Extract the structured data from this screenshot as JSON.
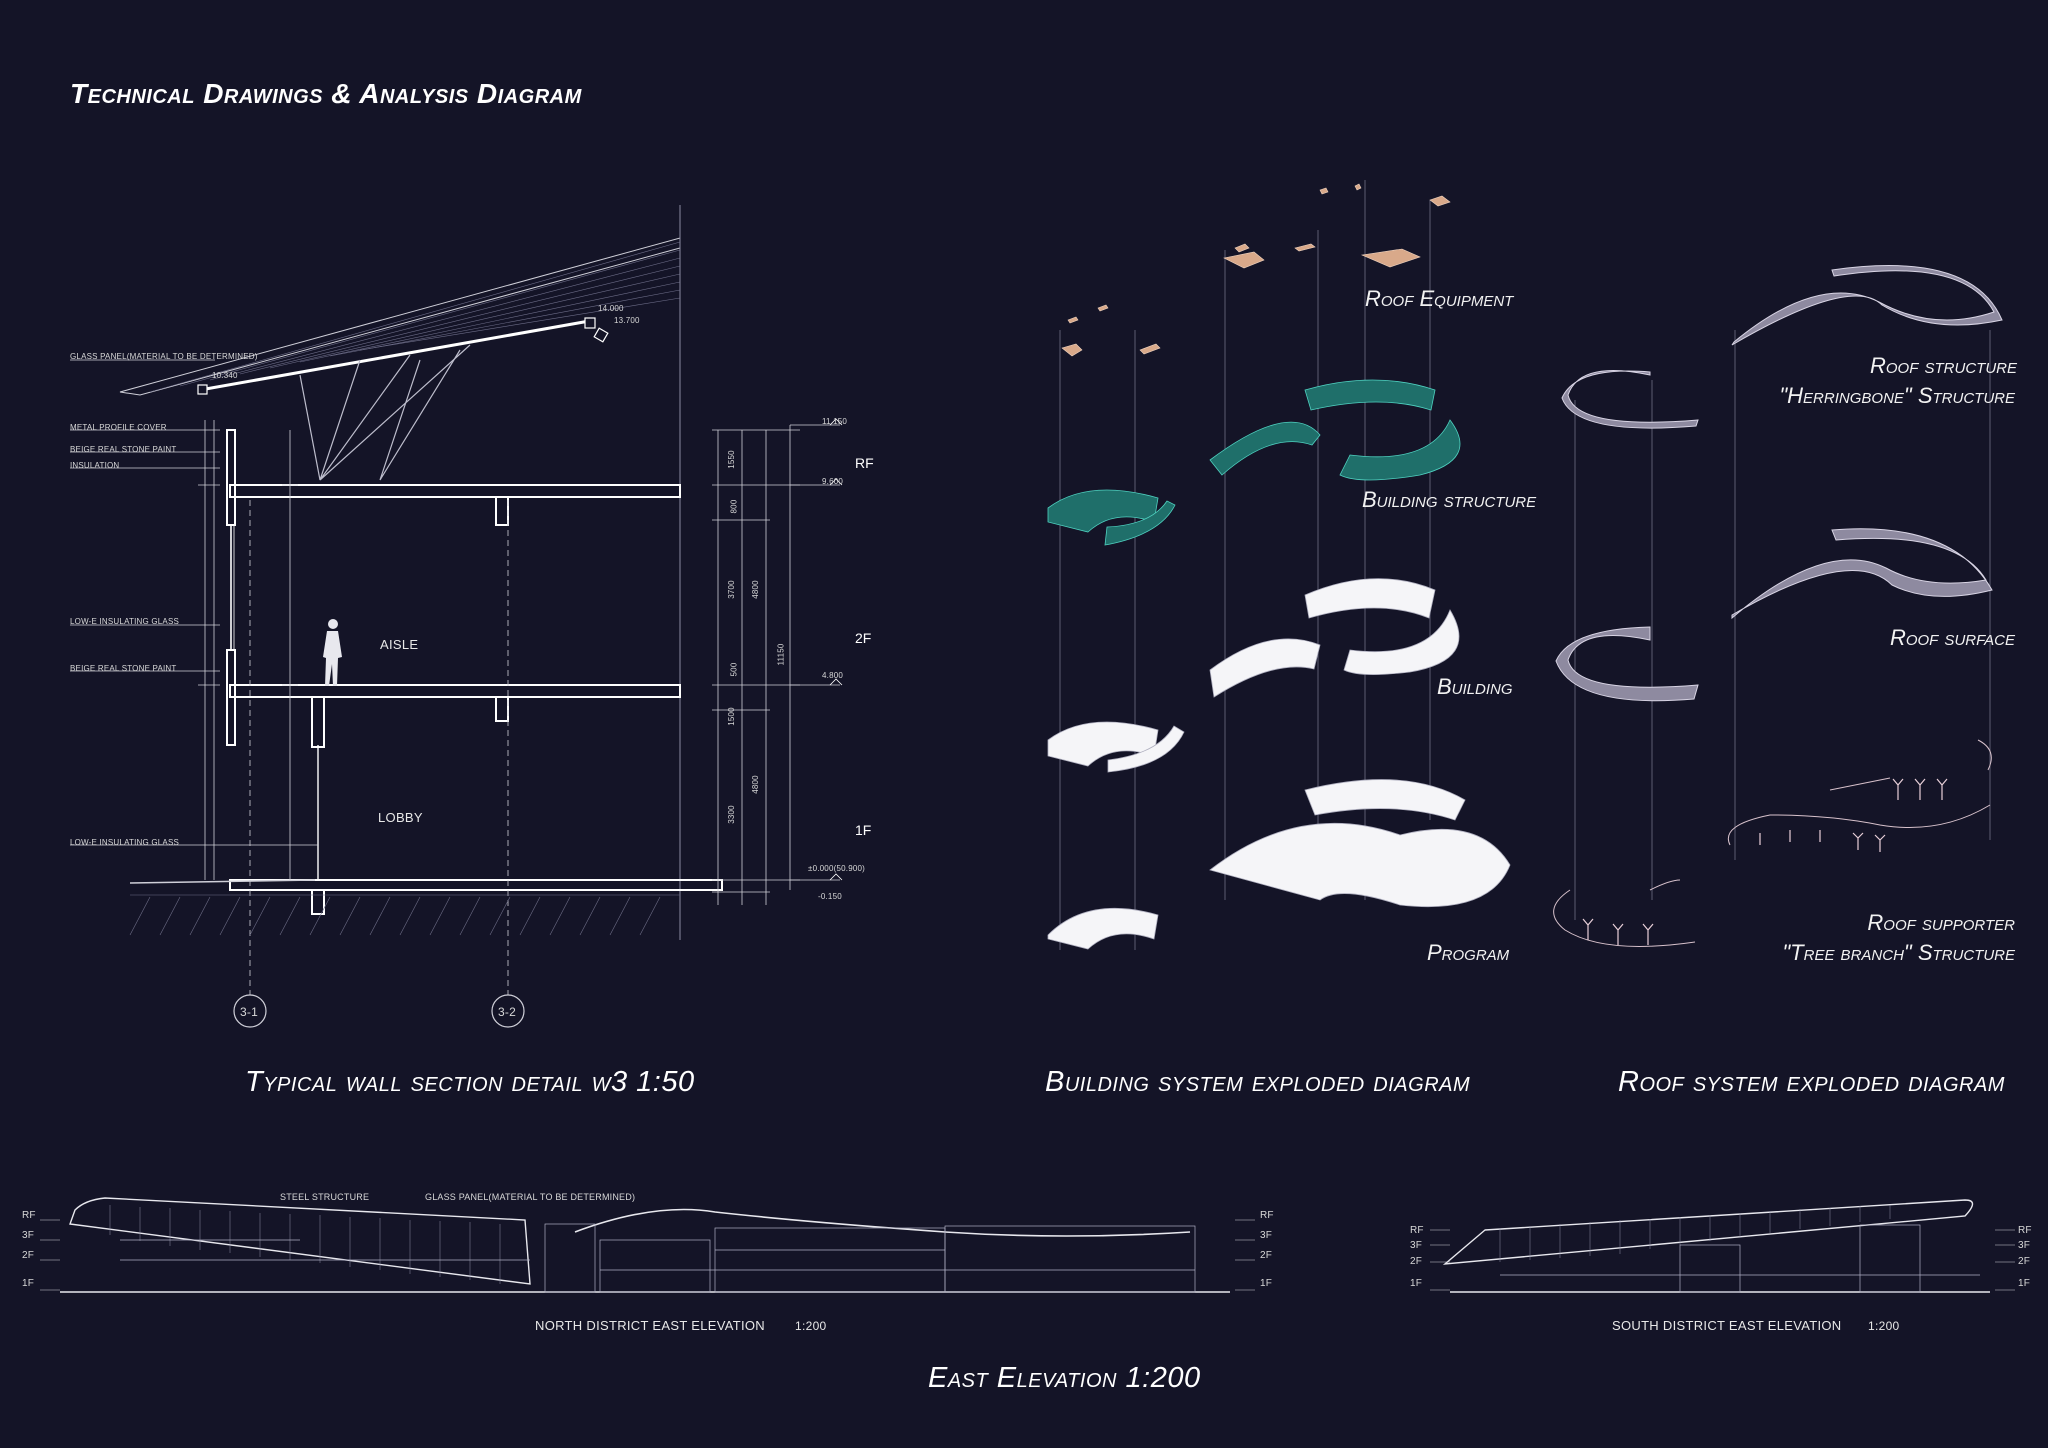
{
  "title": "Technical Drawings & Analysis Diagram",
  "wall_section": {
    "caption": "Typical wall section detail w3 1:50",
    "levels": [
      "RF",
      "2F",
      "1F"
    ],
    "rooms": {
      "aisle": "AISLE",
      "lobby": "LOBBY"
    },
    "grid_axes": [
      "3-1",
      "3-2"
    ],
    "annotations": {
      "glass_panel": "GLASS PANEL(MATERIAL TO BE DETERMINED)",
      "metal_cover": "METAL PROFILE COVER",
      "beige_paint_1": "BEIGE REAL STONE PAINT",
      "insulation": "INSULATION",
      "low_e_1": "LOW-E INSULATING GLASS",
      "beige_paint_2": "BEIGE REAL STONE PAINT",
      "low_e_2": "LOW-E INSULATING GLASS"
    },
    "elevations": {
      "roof_a": "14.000",
      "roof_b": "13.700",
      "roof_c": "10.340",
      "e1": "11.150",
      "e2": "9.600",
      "e3": "4.800",
      "e4": "±0.000(50.900)",
      "e5": "-0.150"
    },
    "dims": {
      "d1": "1550",
      "d2": "800",
      "d3": "3700",
      "d4": "4800",
      "d5": "500",
      "d6": "1500",
      "d7": "4800",
      "d8": "3300",
      "d9": "11150"
    }
  },
  "building_exploded": {
    "caption": "Building system exploded diagram",
    "layers": [
      "Roof Equipment",
      "Building structure",
      "Building",
      "Program"
    ]
  },
  "roof_exploded": {
    "caption": "Roof system exploded diagram",
    "layers": [
      {
        "line1": "Roof structure",
        "line2": "\"Herringbone\" Structure"
      },
      {
        "line1": "Roof surface",
        "line2": ""
      },
      {
        "line1": "Roof supporter",
        "line2": "\"Tree branch\" Structure"
      }
    ]
  },
  "elevations": {
    "north": {
      "label": "NORTH DISTRICT EAST  ELEVATION",
      "scale": "1:200",
      "notes": [
        "STEEL STRUCTURE",
        "GLASS PANEL(MATERIAL TO BE DETERMINED)"
      ],
      "levels": [
        "RF",
        "3F",
        "2F",
        "1F"
      ]
    },
    "south": {
      "label": "SOUTH DISTRICT EAST  ELEVATION",
      "scale": "1:200",
      "levels": [
        "RF",
        "3F",
        "2F",
        "1F"
      ]
    },
    "caption": "East Elevation  1:200"
  },
  "colors": {
    "background": "#141427",
    "line": "#ffffff",
    "structure": "#2f9e8e",
    "roof": "#b9b4c4",
    "equipment": "#d9a98a"
  }
}
